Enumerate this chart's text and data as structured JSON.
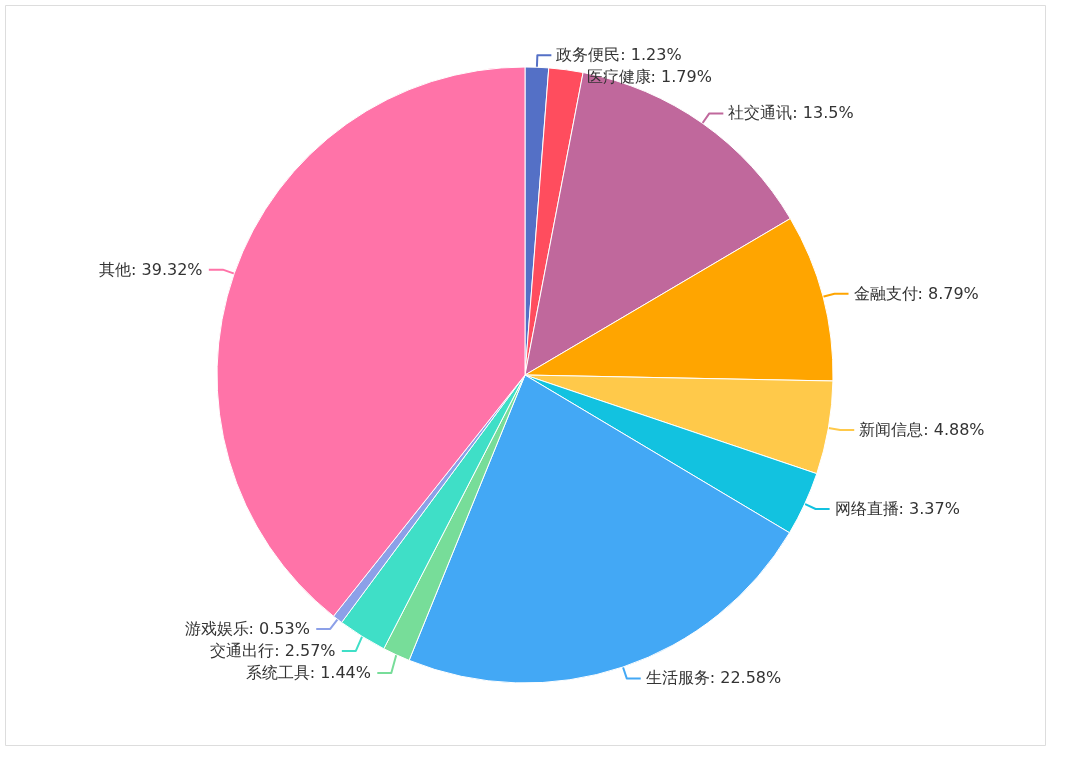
{
  "chart_data": {
    "type": "pie",
    "categories": [
      "政务便民",
      "医疗健康",
      "社交通讯",
      "金融支付",
      "新闻信息",
      "网络直播",
      "生活服务",
      "系统工具",
      "交通出行",
      "游戏娱乐",
      "其他"
    ],
    "values": [
      1.23,
      1.79,
      13.5,
      8.79,
      4.88,
      3.37,
      22.58,
      1.44,
      2.57,
      0.53,
      39.32
    ],
    "value_labels": [
      "1.23%",
      "1.79%",
      "13.5%",
      "8.79%",
      "4.88%",
      "3.37%",
      "22.58%",
      "1.44%",
      "2.57%",
      "0.53%",
      "39.32%"
    ],
    "colors": [
      "#5470c6",
      "#ff4d5e",
      "#c0689c",
      "#ffa500",
      "#ffc94a",
      "#12c2e0",
      "#43a8f5",
      "#77dd99",
      "#3fdfc7",
      "#8ca0e8",
      "#ff73a8"
    ]
  }
}
